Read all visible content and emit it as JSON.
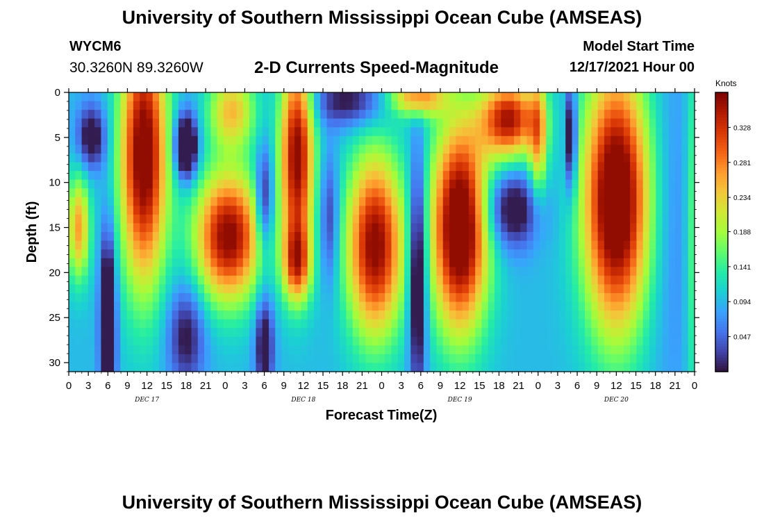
{
  "header": {
    "title": "University of Southern Mississippi Ocean Cube (AMSEAS)",
    "station_id": "WYCM6",
    "coordinates": "30.3260N  89.3260W",
    "chart_title": "2-D Currents Speed-Magnitude",
    "start_label": "Model Start Time",
    "start_value": "12/17/2021 Hour 00"
  },
  "footer": {
    "title": "University of Southern Mississippi Ocean Cube (AMSEAS)"
  },
  "colors": {
    "colormap": [
      "#30123b",
      "#4145ab",
      "#4675ed",
      "#39a2fc",
      "#1bcfd4",
      "#24eca6",
      "#61fc6c",
      "#a4fc3b",
      "#d1e834",
      "#f3c63a",
      "#fe9b2d",
      "#f36315",
      "#d93806",
      "#b11901",
      "#7a0402"
    ]
  },
  "chart_data": {
    "type": "heatmap",
    "title": "2-D Currents Speed-Magnitude",
    "xlabel": "Forecast Time(Z)",
    "ylabel": "Depth (ft)",
    "x_range_hours": [
      0,
      96
    ],
    "y_range_ft": [
      0,
      31
    ],
    "x_ticks": [
      "0",
      "3",
      "6",
      "9",
      "12",
      "15",
      "18",
      "21",
      "0",
      "3",
      "6",
      "9",
      "12",
      "15",
      "18",
      "21",
      "0",
      "3",
      "6",
      "9",
      "12",
      "15",
      "18",
      "21",
      "0",
      "3",
      "6",
      "9",
      "12",
      "15",
      "18",
      "21",
      "0"
    ],
    "day_labels": [
      {
        "label": "DEC 17",
        "hour": 12
      },
      {
        "label": "DEC 18",
        "hour": 36
      },
      {
        "label": "DEC 19",
        "hour": 60
      },
      {
        "label": "DEC 20",
        "hour": 84
      }
    ],
    "y_ticks": [
      0,
      5,
      10,
      15,
      20,
      25,
      30
    ],
    "colorbar": {
      "unit": "Knots",
      "range": [
        0,
        0.375
      ],
      "ticks": [
        "0.328",
        "0.281",
        "0.234",
        "0.188",
        "0.141",
        "0.094",
        "0.047"
      ],
      "tick_values": [
        0.328,
        0.281,
        0.234,
        0.188,
        0.141,
        0.094,
        0.047
      ]
    },
    "features": [
      {
        "hour": 1.5,
        "depth": 15,
        "sh": 1.2,
        "sd": 4,
        "v": 0.17
      },
      {
        "hour": 3.5,
        "depth": 5,
        "sh": 1.5,
        "sd": 2.5,
        "v": -0.12
      },
      {
        "hour": 6,
        "depth": 26,
        "sh": 0.8,
        "sd": 7,
        "v": -0.2
      },
      {
        "hour": 11.5,
        "depth": 7,
        "sh": 2.5,
        "sd": 10,
        "v": 0.3
      },
      {
        "hour": 18,
        "depth": 6,
        "sh": 1.2,
        "sd": 2.5,
        "v": -0.2
      },
      {
        "hour": 18,
        "depth": 27,
        "sh": 2,
        "sd": 4,
        "v": -0.1
      },
      {
        "hour": 24.5,
        "depth": 16,
        "sh": 3.5,
        "sd": 5,
        "v": 0.28
      },
      {
        "hour": 25,
        "depth": 2,
        "sh": 2.5,
        "sd": 3,
        "v": 0.15
      },
      {
        "hour": 30,
        "depth": 12,
        "sh": 1,
        "sd": 4,
        "v": -0.12
      },
      {
        "hour": 30,
        "depth": 28,
        "sh": 1,
        "sd": 4,
        "v": -0.12
      },
      {
        "hour": 35,
        "depth": 7,
        "sh": 1.8,
        "sd": 8,
        "v": 0.28
      },
      {
        "hour": 35,
        "depth": 19,
        "sh": 1.5,
        "sd": 3,
        "v": 0.18
      },
      {
        "hour": 40,
        "depth": 14,
        "sh": 1,
        "sd": 5,
        "v": -0.08
      },
      {
        "hour": 43,
        "depth": 1,
        "sh": 4,
        "sd": 2,
        "v": -0.1
      },
      {
        "hour": 47,
        "depth": 17,
        "sh": 3,
        "sd": 7,
        "v": 0.28
      },
      {
        "hour": 53.5,
        "depth": 0.5,
        "sh": 3,
        "sd": 1.5,
        "v": 0.18
      },
      {
        "hour": 53.5,
        "depth": 20,
        "sh": 0.9,
        "sd": 9,
        "v": -0.17
      },
      {
        "hour": 60,
        "depth": 15,
        "sh": 3,
        "sd": 8,
        "v": 0.33
      },
      {
        "hour": 67.5,
        "depth": 3,
        "sh": 3,
        "sd": 3,
        "v": 0.26
      },
      {
        "hour": 68,
        "depth": 13,
        "sh": 3,
        "sd": 3,
        "v": -0.12
      },
      {
        "hour": 72,
        "depth": 5,
        "sh": 1,
        "sd": 5,
        "v": 0.14
      },
      {
        "hour": 77,
        "depth": 5,
        "sh": 0.6,
        "sd": 4,
        "v": -0.15
      },
      {
        "hour": 84,
        "depth": 12,
        "sh": 3.5,
        "sd": 10,
        "v": 0.33
      },
      {
        "hour": 93,
        "depth": 15,
        "sh": 3,
        "sd": 15,
        "v": -0.03
      },
      {
        "hour": 96,
        "depth": 15,
        "sh": 1,
        "sd": 15,
        "v": 0.08
      }
    ]
  }
}
